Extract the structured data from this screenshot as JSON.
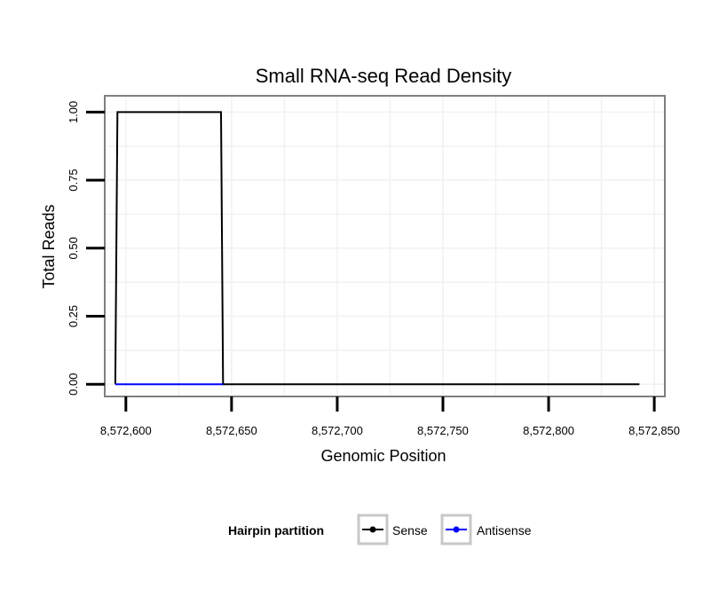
{
  "chart_data": {
    "type": "line",
    "title": "Small RNA-seq Read Density",
    "xlabel": "Genomic Position",
    "ylabel": "Total Reads",
    "xlim": [
      8572590,
      8572855
    ],
    "ylim": [
      -0.045,
      1.06
    ],
    "x_ticks": [
      8572600,
      8572650,
      8572700,
      8572750,
      8572800,
      8572850
    ],
    "x_tick_labels": [
      "8,572,600",
      "8,572,650",
      "8,572,700",
      "8,572,750",
      "8,572,800",
      "8,572,850"
    ],
    "y_ticks": [
      0,
      0.25,
      0.5,
      0.75,
      1
    ],
    "y_tick_labels": [
      "0.00",
      "0.25",
      "0.50",
      "0.75",
      "1.00"
    ],
    "grid": true,
    "legend": {
      "title": "Hairpin partition",
      "placement": "bottom",
      "entries": [
        "Sense",
        "Antisense"
      ]
    },
    "series": [
      {
        "name": "Sense",
        "color": "#000000",
        "x": [
          8572595,
          8572596,
          8572645,
          8572646,
          8572843
        ],
        "y": [
          0,
          1,
          1,
          0,
          0
        ]
      },
      {
        "name": "Antisense",
        "color": "#0000ff",
        "x": [
          8572595,
          8572646
        ],
        "y": [
          0,
          0
        ]
      }
    ]
  }
}
